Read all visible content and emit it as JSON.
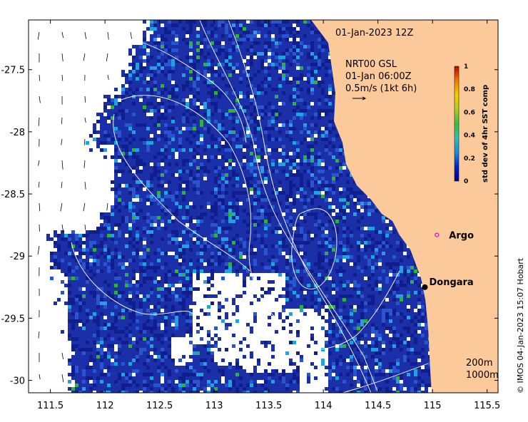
{
  "map": {
    "timestamp": "01-Jan-2023 12Z",
    "current_product": "NRT00 GSL",
    "current_time": "01-Jan 06:00Z",
    "vector_scale_label": "0.5m/s (1kt 6h)",
    "credit": "© IMOS 04-Jan-2023 15:07 Hobart",
    "x_range": [
      111.3,
      115.6
    ],
    "y_range": [
      -30.1,
      -27.1
    ],
    "x_ticks": [
      {
        "value": 111.5,
        "label": "111.5"
      },
      {
        "value": 112,
        "label": "112"
      },
      {
        "value": 112.5,
        "label": "112.5"
      },
      {
        "value": 113,
        "label": "113"
      },
      {
        "value": 113.5,
        "label": "113.5"
      },
      {
        "value": 114,
        "label": "114"
      },
      {
        "value": 114.5,
        "label": "114.5"
      },
      {
        "value": 115,
        "label": "115"
      },
      {
        "value": 115.5,
        "label": "115.5"
      }
    ],
    "y_ticks": [
      {
        "value": -27.5,
        "label": "-27.5"
      },
      {
        "value": -28,
        "label": "-28"
      },
      {
        "value": -28.5,
        "label": "-28.5"
      },
      {
        "value": -29,
        "label": "-29"
      },
      {
        "value": -29.5,
        "label": "-29.5"
      },
      {
        "value": -30,
        "label": "-30"
      }
    ],
    "places": [
      {
        "name": "Argo",
        "lon": 115.04,
        "lat": -28.83,
        "marker": "circle-open",
        "color": "#e600e6"
      },
      {
        "name": "Dongara",
        "lon": 114.93,
        "lat": -29.25,
        "marker": "circle-filled",
        "color": "#000000"
      }
    ],
    "contour_labels": [
      "200m",
      "1000m"
    ],
    "colorbar": {
      "title": "std dev of 4hr SST comp",
      "ticks": [
        "0",
        "0.2",
        "0.4",
        "0.6",
        "0.8",
        "1"
      ],
      "range": [
        0,
        1
      ]
    },
    "colors": {
      "land": "#fbc99a",
      "data_low": "#1530a0",
      "data_mid": "#22a0e0",
      "data_high": "#30b040",
      "no_data": "#ffffff",
      "contour": "#ffffff"
    }
  }
}
